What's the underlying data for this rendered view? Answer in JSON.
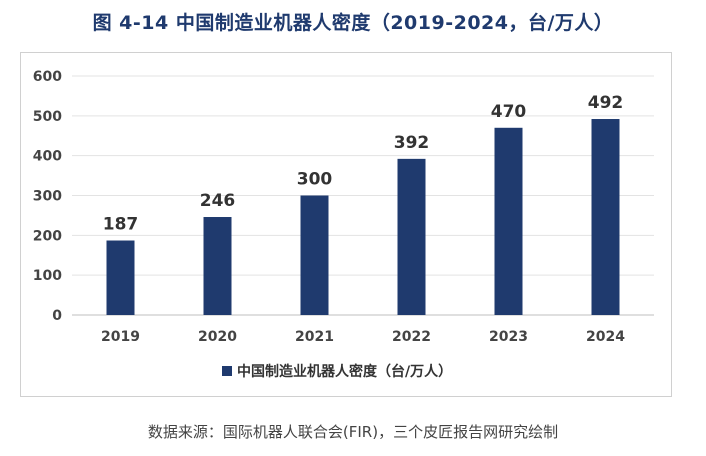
{
  "figure": {
    "title": "图  4-14  中国制造业机器人密度（2019-2024，台/万人）",
    "source": "数据来源：国际机器人联合会(FIR)，三个皮匠报告网研究绘制"
  },
  "chart_data": {
    "type": "bar",
    "categories": [
      "2019",
      "2020",
      "2021",
      "2022",
      "2023",
      "2024"
    ],
    "series": [
      {
        "name": "中国制造业机器人密度（台/万人）",
        "values": [
          187,
          246,
          300,
          392,
          470,
          492
        ]
      }
    ],
    "value_labels": [
      "187",
      "246",
      "300",
      "392",
      "470",
      "492"
    ],
    "y_ticks": [
      "0",
      "100",
      "200",
      "300",
      "400",
      "500",
      "600"
    ],
    "ylim": [
      0,
      600
    ],
    "grid": true,
    "legend_position": "bottom",
    "bar_color": "#1f3a6e"
  }
}
